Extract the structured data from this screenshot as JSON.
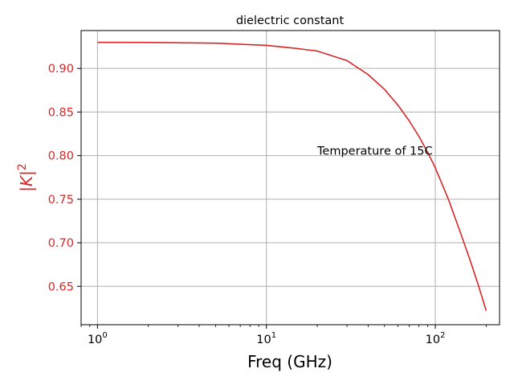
{
  "chart_data": {
    "type": "line",
    "title": "dielectric constant",
    "xlabel": "Freq (GHz)",
    "ylabel_base": "|K|",
    "ylabel_exp": "2",
    "xscale": "log",
    "xlim": [
      0.8,
      240
    ],
    "ylim": [
      0.606,
      0.9435
    ],
    "grid": true,
    "xticks": [
      {
        "value": 1,
        "base": "10",
        "exp": "0"
      },
      {
        "value": 10,
        "base": "10",
        "exp": "1"
      },
      {
        "value": 100,
        "base": "10",
        "exp": "2"
      }
    ],
    "yticks": [
      0.65,
      0.7,
      0.75,
      0.8,
      0.85,
      0.9
    ],
    "ytick_labels": [
      "0.65",
      "0.70",
      "0.75",
      "0.80",
      "0.85",
      "0.90"
    ],
    "series": [
      {
        "color": "#d62728",
        "x": [
          1,
          2,
          5,
          10,
          15,
          20,
          30,
          40,
          50,
          60,
          70,
          80,
          90,
          100,
          120,
          140,
          160,
          180,
          200
        ],
        "y": [
          0.93,
          0.9298,
          0.929,
          0.9265,
          0.923,
          0.92,
          0.909,
          0.893,
          0.876,
          0.858,
          0.84,
          0.822,
          0.804,
          0.786,
          0.749,
          0.713,
          0.681,
          0.651,
          0.622
        ]
      }
    ],
    "annotation": {
      "text": "Temperature of 15C",
      "x": 20,
      "y": 0.8
    }
  },
  "colors": {
    "series": "#d62728",
    "ylabel": "#d62728",
    "ytick_labels": "#d62728",
    "grid": "#b0b0b0",
    "axes": "#000000"
  }
}
